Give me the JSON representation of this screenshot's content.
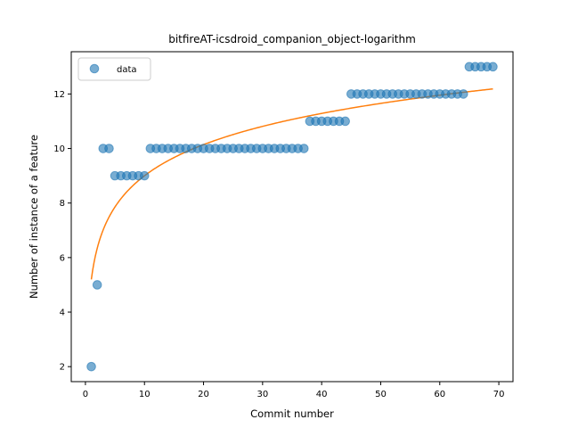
{
  "chart_data": {
    "type": "scatter",
    "title": "bitfireAT-icsdroid_companion_object-logarithm",
    "xlabel": "Commit number",
    "ylabel": "Number of instance of a feature",
    "xlim": [
      -2.4,
      72.4
    ],
    "ylim": [
      1.45,
      13.55
    ],
    "xticks": [
      0,
      10,
      20,
      30,
      40,
      50,
      60,
      70
    ],
    "yticks": [
      2,
      4,
      6,
      8,
      10,
      12
    ],
    "legend": {
      "position": "top-left",
      "entries": [
        "data"
      ]
    },
    "grid": false,
    "colors": {
      "points": "#1f77b4",
      "fit": "#ff7f0e"
    },
    "series": [
      {
        "name": "data",
        "kind": "scatter",
        "x": [
          1,
          2,
          3,
          4,
          5,
          6,
          7,
          8,
          9,
          10,
          11,
          12,
          13,
          14,
          15,
          16,
          17,
          18,
          19,
          20,
          21,
          22,
          23,
          24,
          25,
          26,
          27,
          28,
          29,
          30,
          31,
          32,
          33,
          34,
          35,
          36,
          37,
          38,
          39,
          40,
          41,
          42,
          43,
          44,
          45,
          46,
          47,
          48,
          49,
          50,
          51,
          52,
          53,
          54,
          55,
          56,
          57,
          58,
          59,
          60,
          61,
          62,
          63,
          64,
          65,
          66,
          67,
          68,
          69
        ],
        "y": [
          2,
          5,
          10,
          10,
          9,
          9,
          9,
          9,
          9,
          9,
          10,
          10,
          10,
          10,
          10,
          10,
          10,
          10,
          10,
          10,
          10,
          10,
          10,
          10,
          10,
          10,
          10,
          10,
          10,
          10,
          10,
          10,
          10,
          10,
          10,
          10,
          10,
          11,
          11,
          11,
          11,
          11,
          11,
          11,
          12,
          12,
          12,
          12,
          12,
          12,
          12,
          12,
          12,
          12,
          12,
          12,
          12,
          12,
          12,
          12,
          12,
          12,
          12,
          12,
          13,
          13,
          13,
          13,
          13
        ]
      },
      {
        "kind": "line",
        "fit": {
          "model": "a + b*ln(x)",
          "a": 5.2,
          "b": 1.65,
          "x_start": 1,
          "x_end": 69
        }
      }
    ]
  }
}
